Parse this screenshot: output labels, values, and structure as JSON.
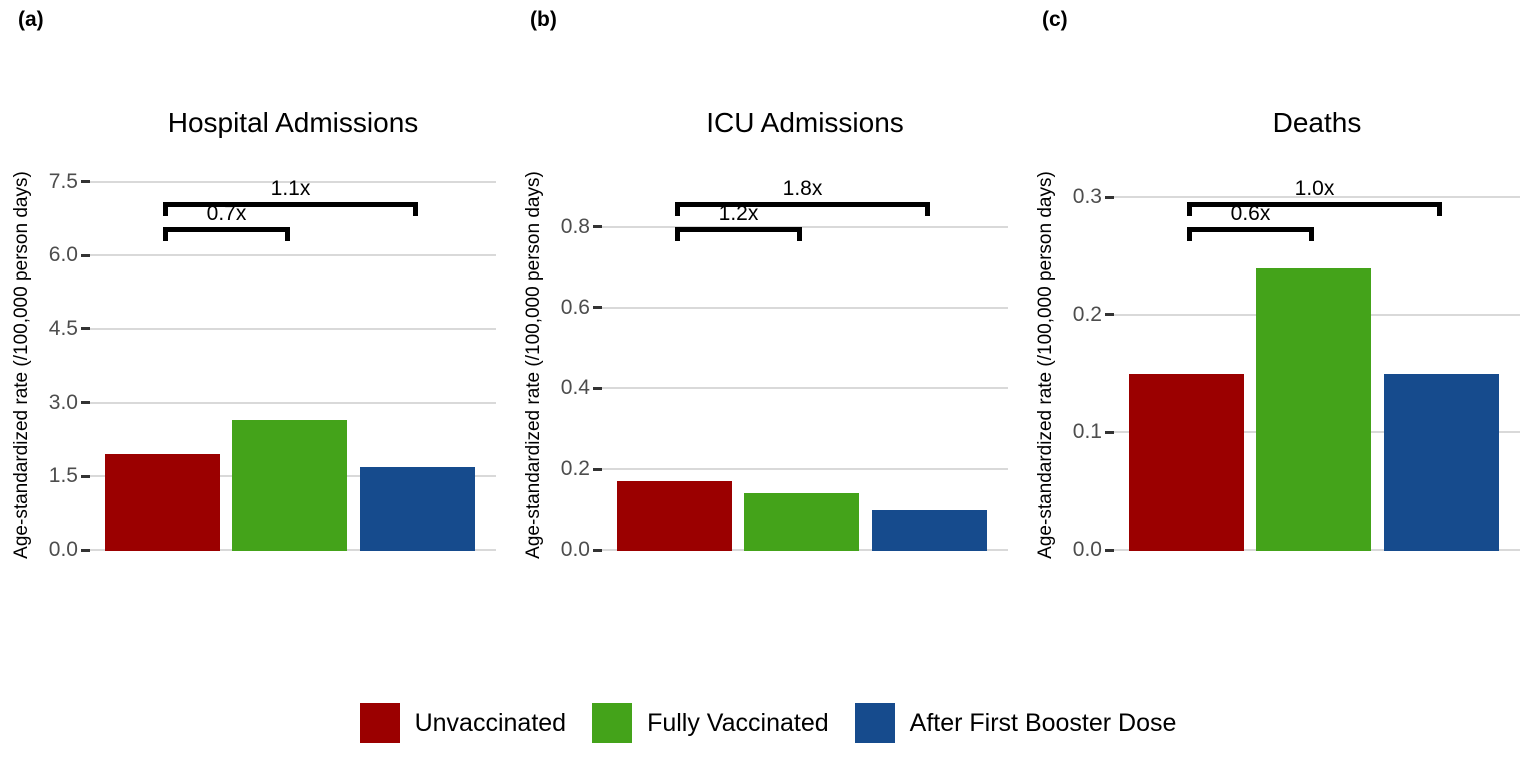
{
  "chart_data": [
    {
      "type": "bar",
      "panel_label": "(a)",
      "title": "Hospital Admissions",
      "ylabel": "Age-standardized rate (/100,000 person days)",
      "categories": [
        "Unvaccinated",
        "Fully Vaccinated",
        "After First Booster Dose"
      ],
      "values": [
        1.95,
        2.65,
        1.7
      ],
      "yticks": [
        0,
        1.5,
        3.0,
        4.5,
        6.0,
        7.5
      ],
      "ytick_labels": [
        "0.0",
        "1.5",
        "3.0",
        "4.5",
        "6.0",
        "7.5"
      ],
      "ylim": [
        0,
        7.9
      ],
      "grid": true,
      "legend_position": "bottom",
      "annotations": [
        {
          "label": "0.7x",
          "from_bar": 0,
          "to_bar": 1,
          "level": "lower"
        },
        {
          "label": "1.1x",
          "from_bar": 0,
          "to_bar": 2,
          "level": "upper"
        }
      ]
    },
    {
      "type": "bar",
      "panel_label": "(b)",
      "title": "ICU Admissions",
      "ylabel": "Age-standardized rate (/100,000 person days)",
      "categories": [
        "Unvaccinated",
        "Fully Vaccinated",
        "After First Booster Dose"
      ],
      "values": [
        0.17,
        0.14,
        0.1
      ],
      "yticks": [
        0,
        0.2,
        0.4,
        0.6,
        0.8
      ],
      "ytick_labels": [
        "0.0",
        "0.2",
        "0.4",
        "0.6",
        "0.8"
      ],
      "ylim": [
        0,
        0.96
      ],
      "grid": true,
      "legend_position": "bottom",
      "annotations": [
        {
          "label": "1.2x",
          "from_bar": 0,
          "to_bar": 1,
          "level": "lower"
        },
        {
          "label": "1.8x",
          "from_bar": 0,
          "to_bar": 2,
          "level": "upper"
        }
      ]
    },
    {
      "type": "bar",
      "panel_label": "(c)",
      "title": "Deaths",
      "ylabel": "Age-standardized rate (/100,000 person days)",
      "categories": [
        "Unvaccinated",
        "Fully Vaccinated",
        "After First Booster Dose"
      ],
      "values": [
        0.15,
        0.24,
        0.15
      ],
      "yticks": [
        0,
        0.1,
        0.2,
        0.3
      ],
      "ytick_labels": [
        "0.0",
        "0.1",
        "0.2",
        "0.3"
      ],
      "ylim": [
        0,
        0.33
      ],
      "grid": true,
      "legend_position": "bottom",
      "annotations": [
        {
          "label": "0.6x",
          "from_bar": 0,
          "to_bar": 1,
          "level": "lower"
        },
        {
          "label": "1.0x",
          "from_bar": 0,
          "to_bar": 2,
          "level": "upper"
        }
      ]
    }
  ],
  "legend": {
    "items": [
      {
        "label": "Unvaccinated",
        "color": "#9B0000"
      },
      {
        "label": "Fully Vaccinated",
        "color": "#44A31A"
      },
      {
        "label": "After First Booster Dose",
        "color": "#164B8D"
      }
    ]
  },
  "style_colors": {
    "background": "#FFFFFF",
    "bar_unvaccinated": "#9B0000",
    "bar_fully_vaccinated": "#44A31A",
    "bar_after_first_booster": "#164B8D",
    "gridline": "#D9D9D9",
    "tick_mark": "#333333",
    "tick_label": "#4D4D4D",
    "bracket": "#000000",
    "text": "#000000"
  }
}
